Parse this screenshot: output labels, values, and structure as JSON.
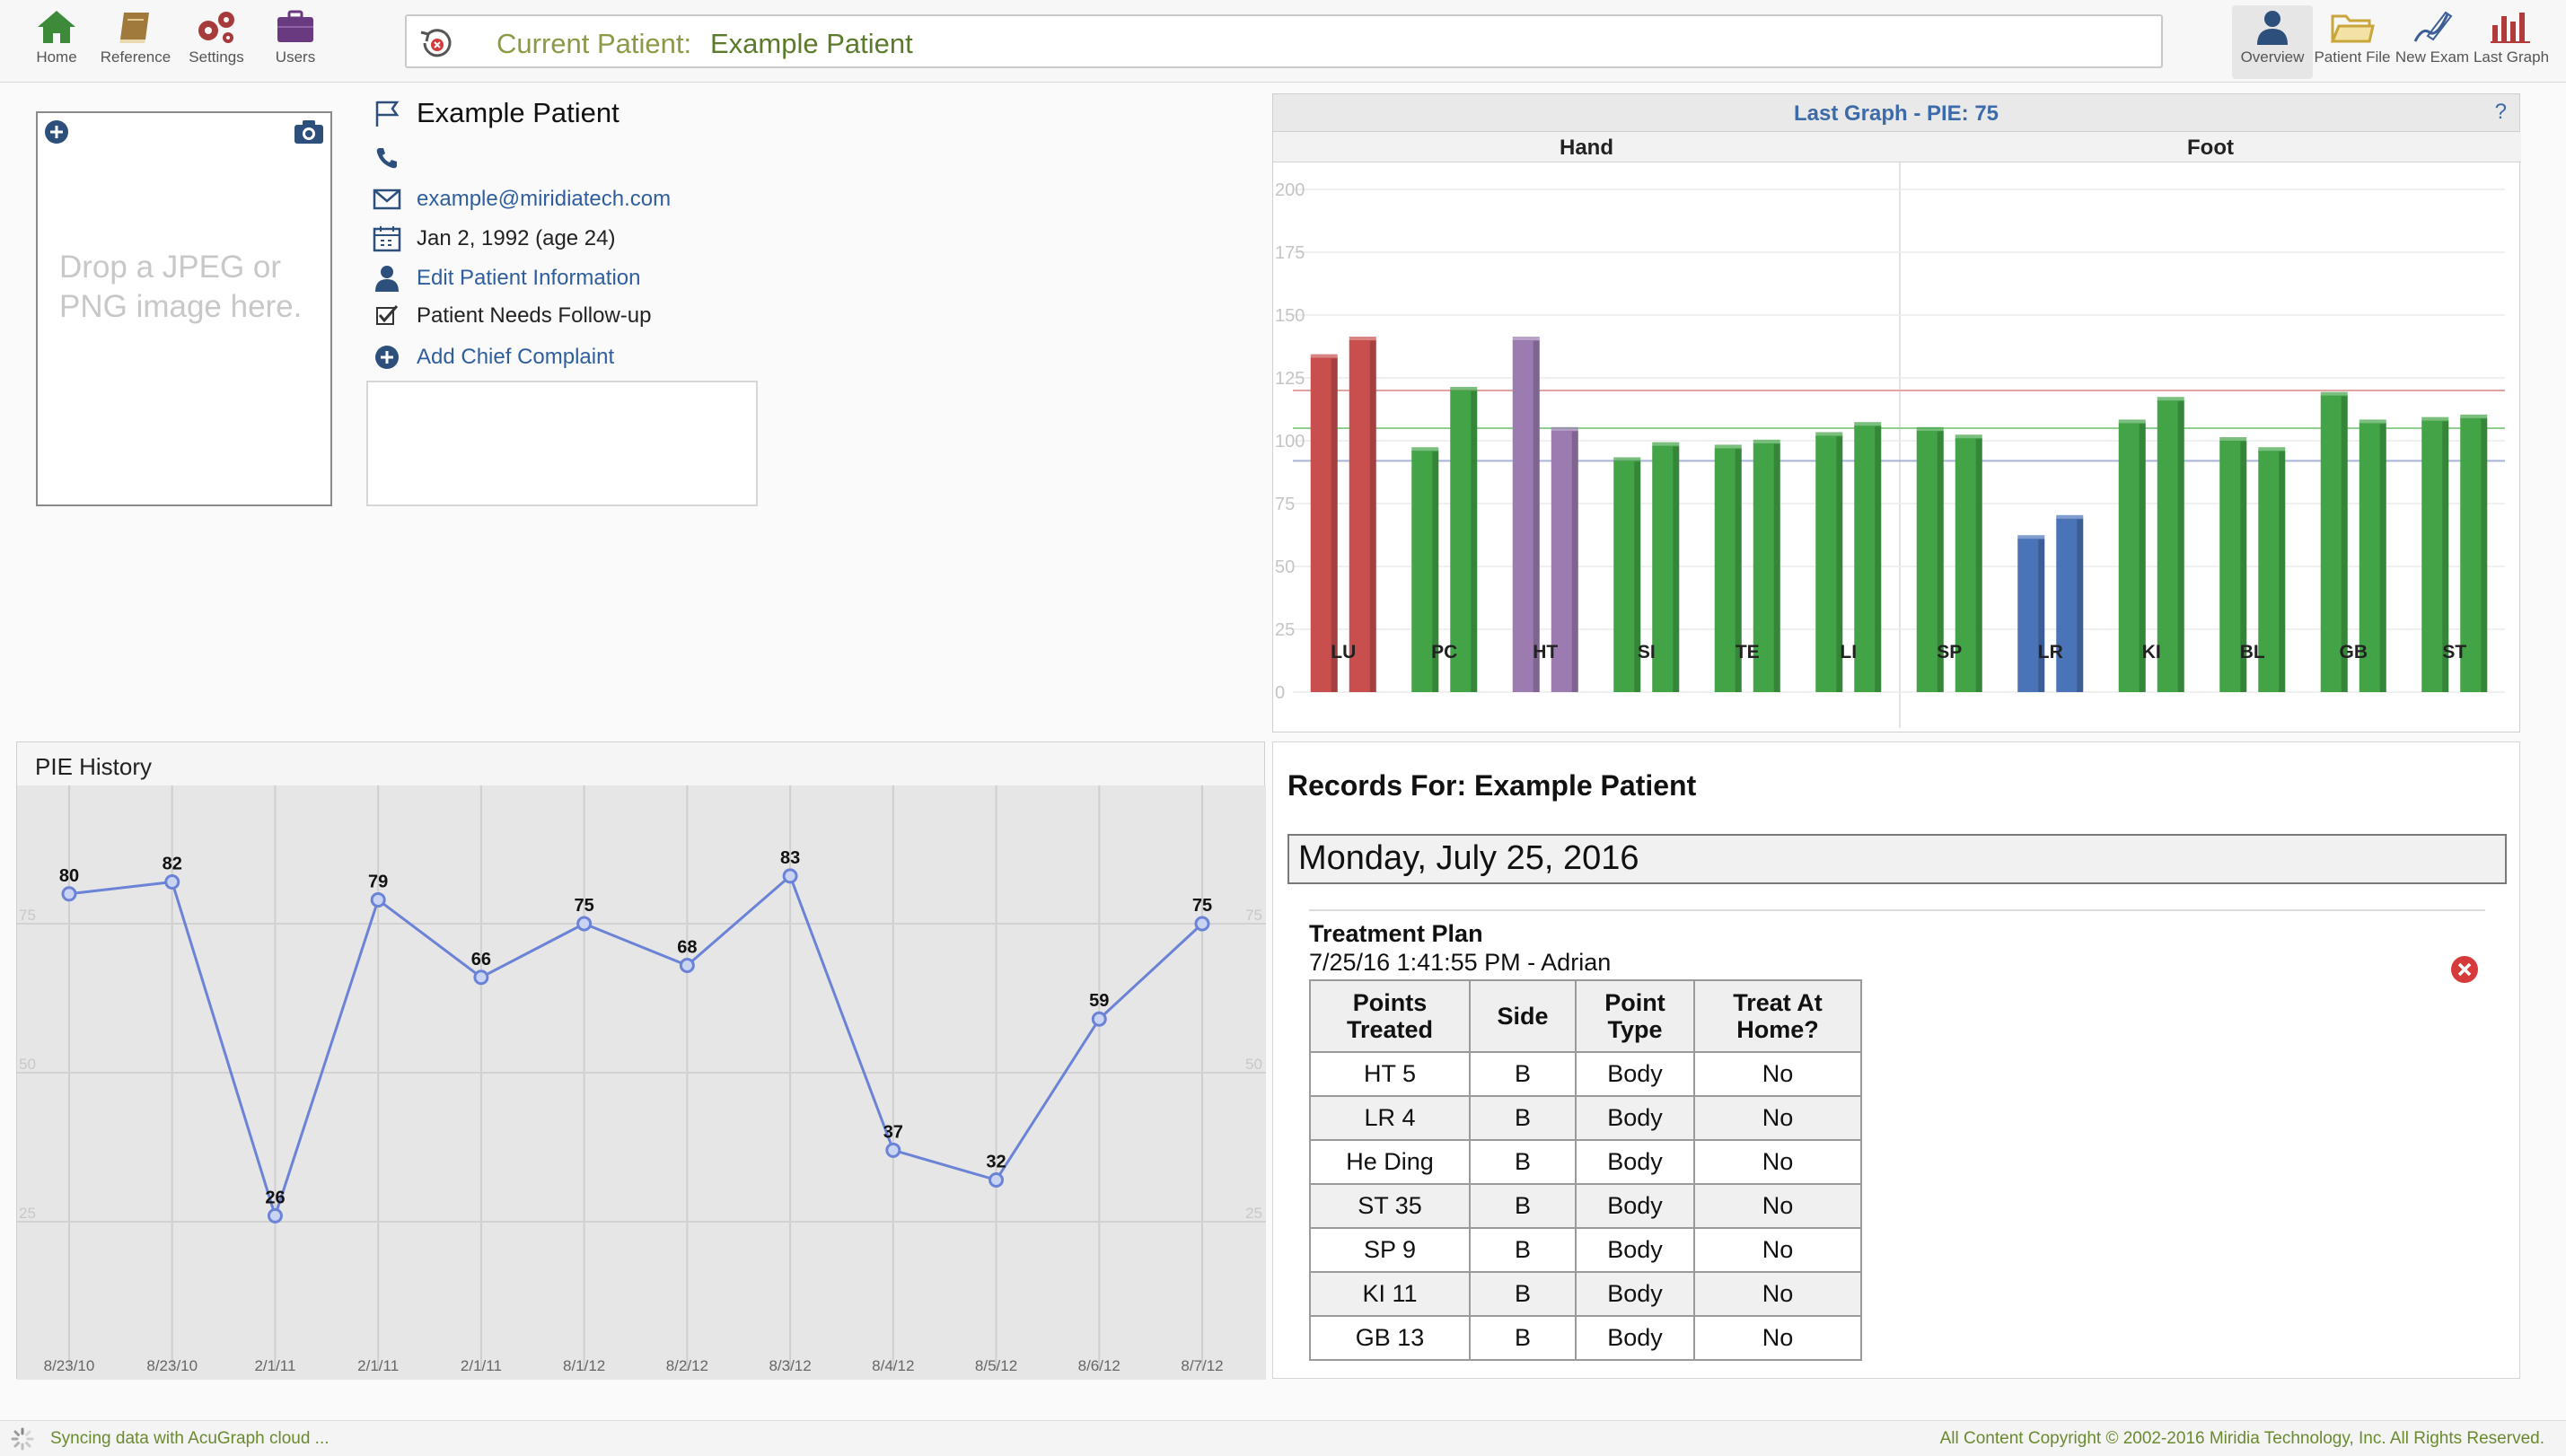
{
  "toolbar": {
    "left": [
      {
        "label": "Home",
        "icon": "home-icon"
      },
      {
        "label": "Reference",
        "icon": "book-icon"
      },
      {
        "label": "Settings",
        "icon": "gears-icon"
      },
      {
        "label": "Users",
        "icon": "briefcase-icon"
      }
    ],
    "right": [
      {
        "label": "Overview",
        "icon": "person-icon"
      },
      {
        "label": "Patient File",
        "icon": "folder-icon"
      },
      {
        "label": "New Exam",
        "icon": "pen-icon"
      },
      {
        "label": "Last Graph",
        "icon": "bar-chart-icon"
      }
    ],
    "current_patient_label": "Current Patient:",
    "current_patient_name": "Example Patient"
  },
  "patient": {
    "name": "Example Patient",
    "phone": "",
    "email": "example@miridiatech.com",
    "dob": "Jan 2, 1992 (age 24)",
    "edit_label": "Edit Patient Information",
    "followup_label": "Patient Needs Follow-up",
    "add_complaint_label": "Add Chief Complaint",
    "photo_drop_line1": "Drop a JPEG or",
    "photo_drop_line2": "PNG image here."
  },
  "last_graph": {
    "title": "Last Graph - PIE: 75",
    "help": "?",
    "sections": [
      "Hand",
      "Foot"
    ],
    "colors": {
      "high": "#c94f4f",
      "normal": "#43a447",
      "purple": "#9b7bb0",
      "low": "#4a73b8"
    },
    "chart_data": {
      "type": "bar",
      "categories": [
        "LU",
        "PC",
        "HT",
        "SI",
        "TE",
        "LI",
        "SP",
        "LR",
        "KI",
        "BL",
        "GB",
        "ST"
      ],
      "series": [
        {
          "values": [
            133,
            96,
            140,
            92,
            97,
            102,
            104,
            61,
            107,
            100,
            118,
            108
          ]
        },
        {
          "values": [
            140,
            120,
            104,
            98,
            99,
            106,
            101,
            69,
            116,
            96,
            107,
            109
          ]
        }
      ],
      "bar_colors": [
        [
          "high",
          "high"
        ],
        [
          "normal",
          "normal"
        ],
        [
          "purple",
          "purple"
        ],
        [
          "normal",
          "normal"
        ],
        [
          "normal",
          "normal"
        ],
        [
          "normal",
          "normal"
        ],
        [
          "normal",
          "normal"
        ],
        [
          "low",
          "low"
        ],
        [
          "normal",
          "normal"
        ],
        [
          "normal",
          "normal"
        ],
        [
          "normal",
          "normal"
        ],
        [
          "normal",
          "normal"
        ]
      ],
      "ylim": [
        0,
        200
      ],
      "yticks": [
        0,
        25,
        50,
        75,
        100,
        125,
        150,
        175,
        200
      ],
      "reference_lines": [
        {
          "value": 120,
          "color": "#e4a3a3"
        },
        {
          "value": 105,
          "color": "#8fcf8f"
        },
        {
          "value": 92,
          "color": "#a9b3d6"
        }
      ]
    }
  },
  "pie_history": {
    "title": "PIE History",
    "chart_data": {
      "type": "line",
      "categories": [
        "8/23/10",
        "8/23/10",
        "2/1/11",
        "2/1/11",
        "2/1/11",
        "8/1/12",
        "8/2/12",
        "8/3/12",
        "8/4/12",
        "8/5/12",
        "8/6/12",
        "8/7/12"
      ],
      "values": [
        80,
        82,
        26,
        79,
        66,
        75,
        68,
        83,
        37,
        32,
        59,
        75
      ],
      "ylim": [
        0,
        100
      ],
      "yticks": [
        25,
        50,
        75
      ],
      "line_color": "#6b83d6"
    }
  },
  "records": {
    "title": "Records For: Example Patient",
    "date": "Monday, July 25, 2016",
    "plan_title": "Treatment Plan",
    "plan_meta": "7/25/16 1:41:55 PM - Adrian",
    "table": {
      "headers": [
        "Points Treated",
        "Side",
        "Point Type",
        "Treat At Home?"
      ],
      "rows": [
        [
          "HT 5",
          "B",
          "Body",
          "No"
        ],
        [
          "LR 4",
          "B",
          "Body",
          "No"
        ],
        [
          "He Ding",
          "B",
          "Body",
          "No"
        ],
        [
          "ST 35",
          "B",
          "Body",
          "No"
        ],
        [
          "SP 9",
          "B",
          "Body",
          "No"
        ],
        [
          "KI 11",
          "B",
          "Body",
          "No"
        ],
        [
          "GB 13",
          "B",
          "Body",
          "No"
        ]
      ]
    }
  },
  "status": {
    "sync": "Syncing data with AcuGraph cloud ...",
    "copyright": "All Content Copyright © 2002-2016 Miridia Technology, Inc. All Rights Reserved."
  }
}
